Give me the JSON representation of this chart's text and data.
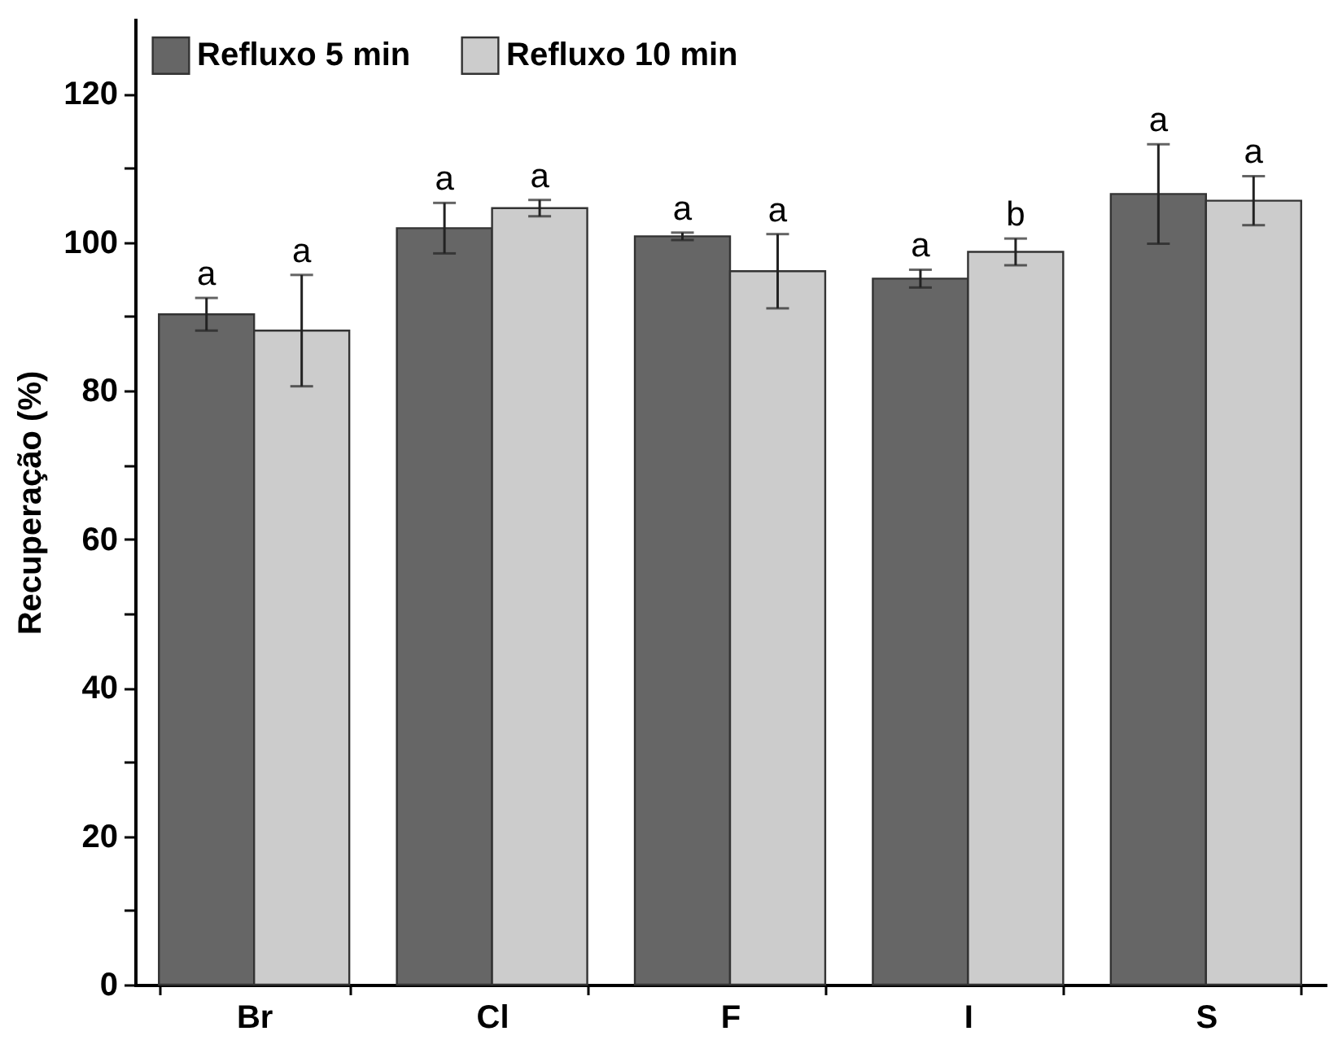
{
  "chart_data": {
    "type": "bar",
    "ylabel": "Recuperação (%)",
    "categories": [
      "Br",
      "Cl",
      "F",
      "I",
      "S"
    ],
    "series": [
      {
        "name": "Refluxo 5 min",
        "color": "#666666",
        "values": [
          90.3,
          101.9,
          100.8,
          95.1,
          106.5
        ],
        "errors": [
          2.2,
          3.4,
          0.5,
          1.2,
          6.7
        ],
        "value_labels": [
          "a",
          "a",
          "a",
          "a",
          "a"
        ]
      },
      {
        "name": "Refluxo 10 min",
        "color": "#cccccc",
        "values": [
          88.1,
          104.6,
          96.1,
          98.7,
          105.6
        ],
        "errors": [
          7.5,
          1.1,
          5.0,
          1.8,
          3.3
        ],
        "value_labels": [
          "a",
          "a",
          "a",
          "b",
          "a"
        ]
      }
    ],
    "ylim": [
      0,
      130
    ],
    "yticks": [
      0,
      {
        "value": 10,
        "label": null
      },
      20,
      {
        "value": 30,
        "label": null
      },
      40,
      {
        "value": 50,
        "label": null
      },
      60,
      {
        "value": 70,
        "label": null
      },
      80,
      {
        "value": 90,
        "label": null
      },
      100,
      {
        "value": 110,
        "label": null
      },
      120
    ],
    "grid": false,
    "legend": "top left"
  }
}
